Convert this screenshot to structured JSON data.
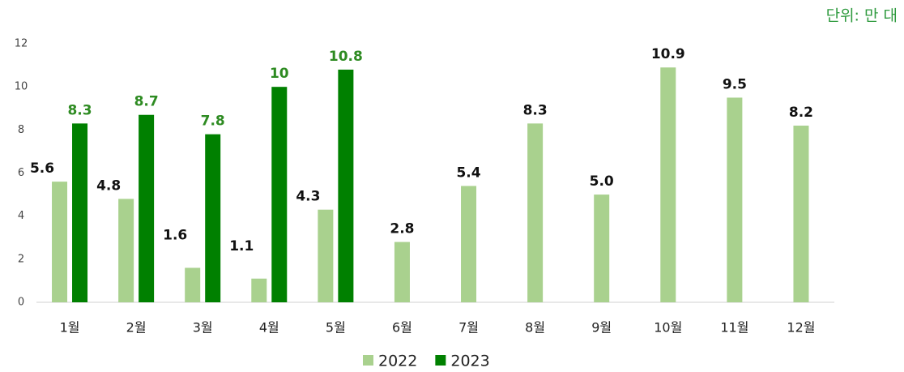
{
  "chart_data": {
    "type": "bar",
    "subtitle": "단위: 만 대",
    "categories": [
      "1월",
      "2월",
      "3월",
      "4월",
      "5월",
      "6월",
      "7월",
      "8월",
      "9월",
      "10월",
      "11월",
      "12월"
    ],
    "series": [
      {
        "name": "2022",
        "color": "#a9d18e",
        "values": [
          5.6,
          4.8,
          1.6,
          1.1,
          4.3,
          2.8,
          5.4,
          8.3,
          5.0,
          10.9,
          9.5,
          8.2
        ],
        "value_labels": [
          "5.6",
          "4.8",
          "1.6",
          "1.1",
          "4.3",
          "2.8",
          "5.4",
          "8.3",
          "5.0",
          "10.9",
          "9.5",
          "8.2"
        ]
      },
      {
        "name": "2023",
        "color": "#008000",
        "values": [
          8.3,
          8.7,
          7.8,
          10,
          10.8,
          null,
          null,
          null,
          null,
          null,
          null,
          null
        ]
      }
    ],
    "ylim": [
      0,
      12
    ],
    "yticks": [
      0,
      2,
      4,
      6,
      8,
      10,
      12
    ],
    "grid": false
  }
}
